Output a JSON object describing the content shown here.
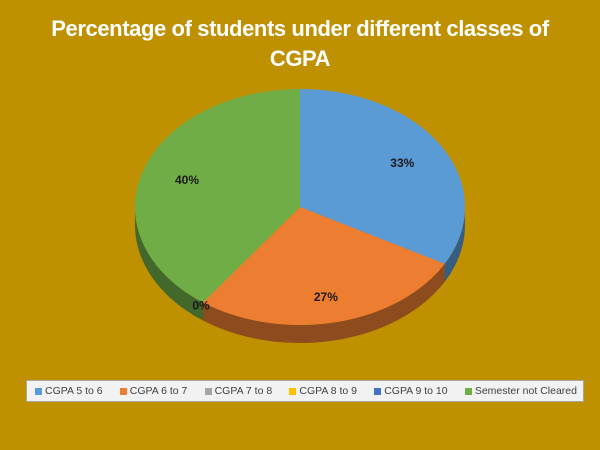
{
  "chart_data": {
    "type": "pie",
    "title_lines": [
      "Percentage of students under different classes of",
      "CGPA"
    ],
    "categories": [
      "CGPA 5 to 6",
      "CGPA 6 to 7",
      "CGPA 7 to 8",
      "CGPA 8 to 9",
      "CGPA 9 to 10",
      "Semester not Cleared"
    ],
    "values": [
      33,
      27,
      0,
      0,
      0,
      40
    ],
    "data_labels": [
      "33%",
      "27%",
      "0%",
      "",
      "",
      "40%"
    ],
    "colors": [
      "#5B9BD5",
      "#ED7D31",
      "#A5A5A5",
      "#FFC000",
      "#4472C4",
      "#70AD47"
    ],
    "legend_position": "bottom",
    "style": "3d-pie"
  }
}
